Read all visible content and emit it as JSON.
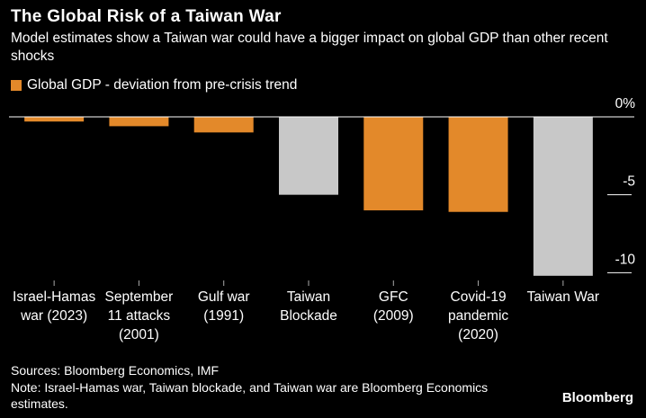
{
  "chart_data": {
    "type": "bar",
    "title": "The Global Risk of a Taiwan War",
    "subtitle": "Model estimates show a Taiwan war could have a bigger impact on global GDP than other recent shocks",
    "categories": [
      "Israel-Hamas\nwar (2023)",
      "September\n11 attacks\n(2001)",
      "Gulf war\n(1991)",
      "Taiwan\nBlockade",
      "GFC\n(2009)",
      "Covid-19\npandemic\n(2020)",
      "Taiwan War"
    ],
    "series": [
      {
        "name": "Global GDP - deviation from pre-crisis trend",
        "color": "#e3892a",
        "values": [
          -0.3,
          -0.6,
          -1.0,
          -5.0,
          -6.0,
          -6.1,
          -10.2
        ],
        "colors": [
          "#e3892a",
          "#e3892a",
          "#e3892a",
          "#c8c8c8",
          "#e3892a",
          "#e3892a",
          "#c8c8c8"
        ]
      }
    ],
    "ylim": [
      -10.5,
      0
    ],
    "yticks": [
      {
        "value": 0,
        "label": "0%"
      },
      -5,
      -10
    ],
    "sources": "Sources: Bloomberg Economics, IMF",
    "note": "Note: Israel-Hamas war, Taiwan blockade, and Taiwan war are Bloomberg Economics estimates.",
    "brand": "Bloomberg"
  }
}
